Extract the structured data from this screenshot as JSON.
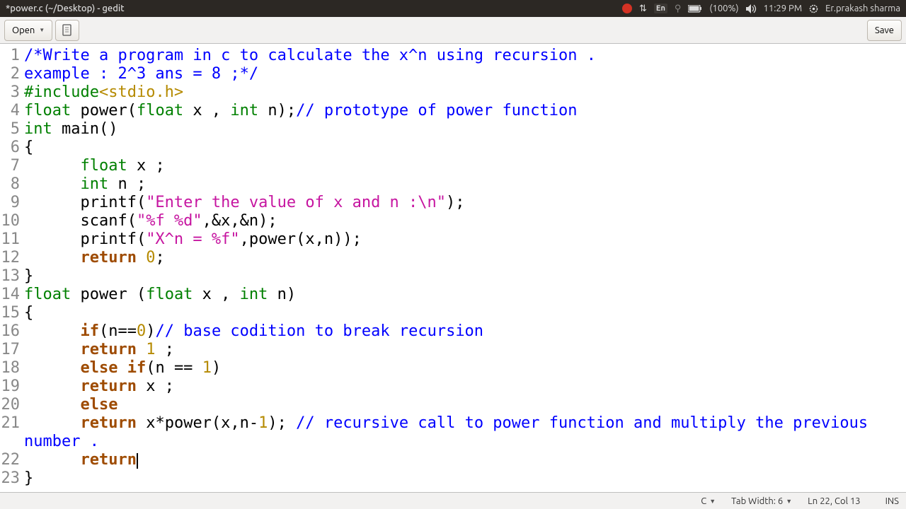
{
  "menubar": {
    "title": "*power.c (~/Desktop) - gedit",
    "lang": "En",
    "battery": "(100%)",
    "time": "11:29 PM",
    "user": "Er.prakash sharma"
  },
  "toolbar": {
    "open": "Open",
    "save": "Save"
  },
  "code": {
    "lines": [
      {
        "n": 1,
        "tokens": [
          [
            "c-com",
            "/*Write a program in c to calculate the x^n using recursion ."
          ]
        ]
      },
      {
        "n": 2,
        "tokens": [
          [
            "c-com",
            "example : 2^3 ans = 8 ;*/"
          ]
        ]
      },
      {
        "n": 3,
        "tokens": [
          [
            "c-pre",
            "#include"
          ],
          [
            "c-inc",
            "<stdio.h>"
          ]
        ]
      },
      {
        "n": 4,
        "tokens": [
          [
            "c-type",
            "float"
          ],
          [
            "",
            " power("
          ],
          [
            "c-type",
            "float"
          ],
          [
            "",
            " x , "
          ],
          [
            "c-type",
            "int"
          ],
          [
            "",
            " n);"
          ],
          [
            "c-com",
            "// prototype of power function"
          ]
        ]
      },
      {
        "n": 5,
        "tokens": [
          [
            "c-type",
            "int"
          ],
          [
            "",
            " main()"
          ]
        ]
      },
      {
        "n": 6,
        "tokens": [
          [
            "",
            "{"
          ]
        ]
      },
      {
        "n": 7,
        "tokens": [
          [
            "",
            "      "
          ],
          [
            "c-type",
            "float"
          ],
          [
            "",
            " x ;"
          ]
        ]
      },
      {
        "n": 8,
        "tokens": [
          [
            "",
            "      "
          ],
          [
            "c-type",
            "int"
          ],
          [
            "",
            " n ;"
          ]
        ]
      },
      {
        "n": 9,
        "tokens": [
          [
            "",
            "      printf("
          ],
          [
            "c-str",
            "\"Enter the value of x and n :\\n\""
          ],
          [
            "",
            ");"
          ]
        ]
      },
      {
        "n": 10,
        "tokens": [
          [
            "",
            "      scanf("
          ],
          [
            "c-str",
            "\"%f %d\""
          ],
          [
            "",
            ",&x,&n);"
          ]
        ]
      },
      {
        "n": 11,
        "tokens": [
          [
            "",
            "      printf("
          ],
          [
            "c-str",
            "\"X^n = %f\""
          ],
          [
            "",
            ",power(x,n));"
          ]
        ]
      },
      {
        "n": 12,
        "tokens": [
          [
            "",
            "      "
          ],
          [
            "c-kw",
            "return"
          ],
          [
            "",
            " "
          ],
          [
            "c-num",
            "0"
          ],
          [
            "",
            ";"
          ]
        ]
      },
      {
        "n": 13,
        "tokens": [
          [
            "",
            "}"
          ]
        ]
      },
      {
        "n": 14,
        "tokens": [
          [
            "c-type",
            "float"
          ],
          [
            "",
            " power ("
          ],
          [
            "c-type",
            "float"
          ],
          [
            "",
            " x , "
          ],
          [
            "c-type",
            "int"
          ],
          [
            "",
            " n)"
          ]
        ]
      },
      {
        "n": 15,
        "tokens": [
          [
            "",
            "{"
          ]
        ]
      },
      {
        "n": 16,
        "tokens": [
          [
            "",
            "      "
          ],
          [
            "c-kw",
            "if"
          ],
          [
            "",
            "(n=="
          ],
          [
            "c-num",
            "0"
          ],
          [
            "",
            ")"
          ],
          [
            "c-com",
            "// base codition to break recursion"
          ]
        ]
      },
      {
        "n": 17,
        "tokens": [
          [
            "",
            "      "
          ],
          [
            "c-kw",
            "return"
          ],
          [
            "",
            " "
          ],
          [
            "c-num",
            "1"
          ],
          [
            "",
            " ;"
          ]
        ]
      },
      {
        "n": 18,
        "tokens": [
          [
            "",
            "      "
          ],
          [
            "c-kw",
            "else if"
          ],
          [
            "",
            "(n == "
          ],
          [
            "c-num",
            "1"
          ],
          [
            "",
            ")"
          ]
        ]
      },
      {
        "n": 19,
        "tokens": [
          [
            "",
            "      "
          ],
          [
            "c-kw",
            "return"
          ],
          [
            "",
            " x ;"
          ]
        ]
      },
      {
        "n": 20,
        "tokens": [
          [
            "",
            "      "
          ],
          [
            "c-kw",
            "else"
          ]
        ]
      },
      {
        "n": 21,
        "tokens": [
          [
            "",
            "      "
          ],
          [
            "c-kw",
            "return"
          ],
          [
            "",
            " x*power(x,n-"
          ],
          [
            "c-num",
            "1"
          ],
          [
            "",
            "); "
          ],
          [
            "c-com",
            "// recursive call to power function and multiply the previous "
          ]
        ]
      },
      {
        "n": 0,
        "wrap": true,
        "tokens": [
          [
            "c-com",
            "number ."
          ]
        ]
      },
      {
        "n": 22,
        "tokens": [
          [
            "",
            "      "
          ],
          [
            "c-kw",
            "return"
          ]
        ],
        "cursor": true
      },
      {
        "n": 23,
        "tokens": [
          [
            "",
            "}"
          ]
        ]
      }
    ]
  },
  "status": {
    "lang": "C",
    "tab": "Tab Width: 6",
    "pos": "Ln 22, Col 13",
    "ins": "INS"
  }
}
